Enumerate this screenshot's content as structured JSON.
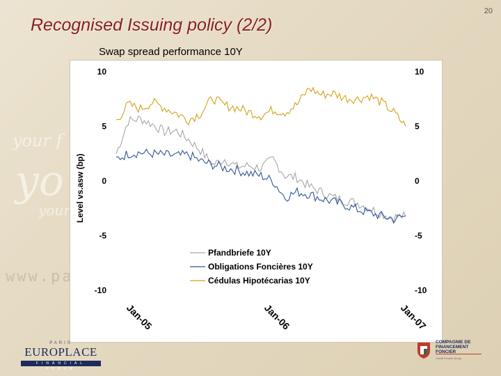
{
  "slide": {
    "page_number": "20",
    "title": "Recognised Issuing policy  (2/2)",
    "chart_title": "Swap spread performance 10Y"
  },
  "colors": {
    "title": "#8a1f1f",
    "pfandbriefe": "#a6a6a6",
    "obligations": "#2f5597",
    "cedulas": "#d4a017"
  },
  "logos": {
    "europlace_top": "PARIS",
    "europlace_name": "EUROPLACE",
    "europlace_bar": "FINANCIAL FORUM",
    "cff_name": "COMPAGNIE DE\nFINANCEMENT\nFONCIER",
    "cff_sub": "Crédit Foncier Group"
  },
  "chart_data": {
    "type": "line",
    "ylabel": "Level vs.asw (bp)",
    "ylim": [
      -10,
      10
    ],
    "y_ticks": [
      "10",
      "5",
      "0",
      "-5",
      "-10"
    ],
    "x_ticks": [
      "Jan-05",
      "Jan-06",
      "Jan-07"
    ],
    "legend_position": "bottom-left",
    "x": [
      "2005-01",
      "2005-02",
      "2005-03",
      "2005-04",
      "2005-05",
      "2005-06",
      "2005-07",
      "2005-08",
      "2005-09",
      "2005-10",
      "2005-11",
      "2005-12",
      "2006-01",
      "2006-02",
      "2006-03",
      "2006-04",
      "2006-05",
      "2006-06",
      "2006-07",
      "2006-08",
      "2006-09",
      "2006-10",
      "2006-11",
      "2006-12",
      "2007-01"
    ],
    "series": [
      {
        "name": "Pfandbriefe 10Y",
        "values": [
          2.5,
          5.5,
          5.7,
          5.2,
          4.5,
          4.6,
          3.8,
          2.8,
          1.5,
          2.0,
          1.3,
          1.4,
          1.2,
          2.0,
          0.5,
          0.3,
          -0.5,
          -1.0,
          -1.5,
          -1.8,
          -2.0,
          -2.5,
          -3.0,
          -3.3,
          -3.2
        ]
      },
      {
        "name": "Obligations Foncières 10Y",
        "values": [
          2.0,
          2.5,
          2.6,
          2.5,
          2.4,
          2.3,
          2.4,
          1.8,
          1.5,
          1.2,
          1.0,
          0.7,
          0.5,
          0.0,
          -1.5,
          -1.0,
          -1.2,
          -1.6,
          -1.9,
          -2.2,
          -2.6,
          -2.9,
          -3.2,
          -3.5,
          -3.2
        ]
      },
      {
        "name": "Cédulas Hipotécarias 10Y",
        "values": [
          5.5,
          7.0,
          6.6,
          7.2,
          6.7,
          6.2,
          5.6,
          6.2,
          7.6,
          6.9,
          6.7,
          6.3,
          6.0,
          6.5,
          6.3,
          7.0,
          8.5,
          7.9,
          8.0,
          7.6,
          7.5,
          7.8,
          7.2,
          6.3,
          5.0
        ]
      }
    ]
  }
}
